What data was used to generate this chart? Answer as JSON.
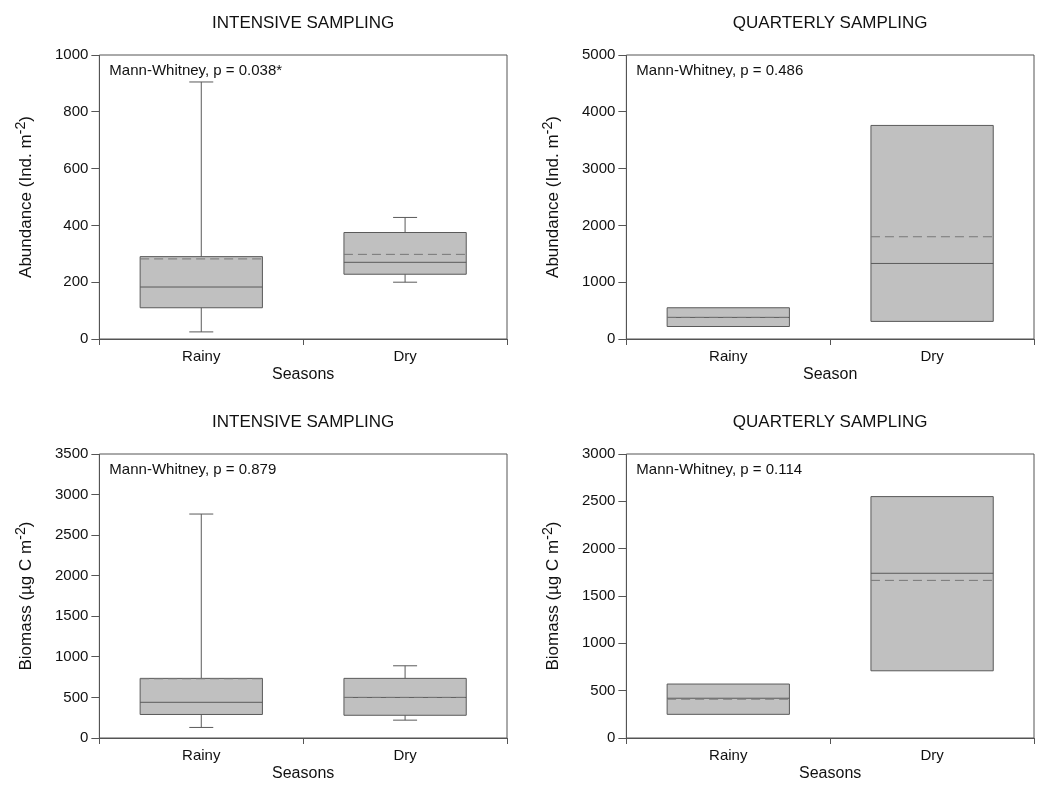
{
  "chart_data": [
    {
      "type": "box",
      "title": "INTENSIVE SAMPLING",
      "xlabel": "Seasons",
      "ylabel": "Abundance (Ind. m$^{-2}$)",
      "categories": [
        "Rainy",
        "Dry"
      ],
      "ylim": [
        0,
        1000
      ],
      "yticks": [
        0,
        200,
        400,
        600,
        800,
        1000
      ],
      "annotations": [
        "Mann-Whitney, p = 0.038*"
      ],
      "series": [
        {
          "color": "#c0c0c0",
          "boxes": [
            {
              "low": 25,
              "q1": 110,
              "median": 183,
              "q3": 290,
              "high": 905,
              "mean": 282
            },
            {
              "low": 200,
              "q1": 228,
              "median": 270,
              "q3": 375,
              "high": 428,
              "mean": 298
            }
          ]
        }
      ]
    },
    {
      "type": "box",
      "title": "QUARTERLY SAMPLING",
      "xlabel": "Season",
      "ylabel": "Abundance (Ind. m$^{-2}$)",
      "categories": [
        "Rainy",
        "Dry"
      ],
      "ylim": [
        0,
        5000
      ],
      "yticks": [
        0,
        1000,
        2000,
        3000,
        4000,
        5000
      ],
      "annotations": [
        "Mann-Whitney, p = 0.486"
      ],
      "series": [
        {
          "color": "#c0c0c0",
          "boxes": [
            {
              "low": 220,
              "q1": 220,
              "median": 380,
              "q3": 550,
              "high": 550,
              "mean": 380
            },
            {
              "low": 310,
              "q1": 310,
              "median": 1330,
              "q3": 3760,
              "high": 3760,
              "mean": 1800
            }
          ]
        }
      ]
    },
    {
      "type": "box",
      "title": "INTENSIVE SAMPLING",
      "xlabel": "Seasons",
      "ylabel": "Biomass (µg C m$^{-2}$)",
      "categories": [
        "Rainy",
        "Dry"
      ],
      "ylim": [
        0,
        3500
      ],
      "yticks": [
        0,
        500,
        1000,
        1500,
        2000,
        2500,
        3000,
        3500
      ],
      "annotations": [
        "Mann-Whitney, p = 0.879"
      ],
      "series": [
        {
          "color": "#c0c0c0",
          "boxes": [
            {
              "low": 130,
              "q1": 290,
              "median": 440,
              "q3": 735,
              "high": 2760,
              "mean": 730
            },
            {
              "low": 220,
              "q1": 280,
              "median": 500,
              "q3": 735,
              "high": 890,
              "mean": 500
            }
          ]
        }
      ]
    },
    {
      "type": "box",
      "title": "QUARTERLY SAMPLING",
      "xlabel": "Seasons",
      "ylabel": "Biomass (µg C m$^{-2}$)",
      "categories": [
        "Rainy",
        "Dry"
      ],
      "ylim": [
        0,
        3000
      ],
      "yticks": [
        0,
        500,
        1000,
        1500,
        2000,
        2500,
        3000
      ],
      "annotations": [
        "Mann-Whitney, p = 0.114"
      ],
      "series": [
        {
          "color": "#c0c0c0",
          "boxes": [
            {
              "low": 250,
              "q1": 250,
              "median": 420,
              "q3": 570,
              "high": 570,
              "mean": 410
            },
            {
              "low": 710,
              "q1": 710,
              "median": 1740,
              "q3": 2550,
              "high": 2550,
              "mean": 1665
            }
          ]
        }
      ]
    }
  ]
}
